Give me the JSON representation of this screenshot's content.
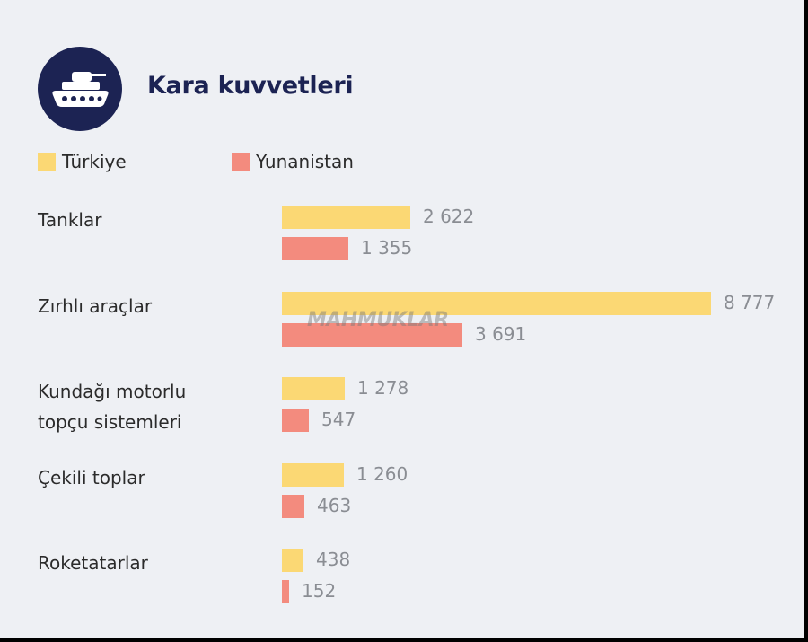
{
  "header": {
    "title": "Kara kuvvetleri",
    "icon": "tank-icon"
  },
  "watermark": "MAHMUKLAR",
  "colors": {
    "turkiye": "#fbd874",
    "yunanistan": "#f38b7e",
    "title": "#1c2353"
  },
  "chart_data": {
    "type": "bar",
    "orientation": "horizontal",
    "title": "Kara kuvvetleri",
    "categories": [
      "Tanklar",
      "Zırhlı araçlar",
      "Kundağı motorlu topçu sistemleri",
      "Çekili toplar",
      "Roketatarlar"
    ],
    "series": [
      {
        "name": "Türkiye",
        "values": [
          2622,
          8777,
          1278,
          1260,
          438
        ],
        "labels": [
          "2 622",
          "8 777",
          "1 278",
          "1 260",
          "438"
        ]
      },
      {
        "name": "Yunanistan",
        "values": [
          1355,
          3691,
          547,
          463,
          152
        ],
        "labels": [
          "1 355",
          "3 691",
          "547",
          "463",
          "152"
        ]
      }
    ],
    "xlim": [
      0,
      8777
    ],
    "grid": false,
    "legend": "top-left"
  }
}
